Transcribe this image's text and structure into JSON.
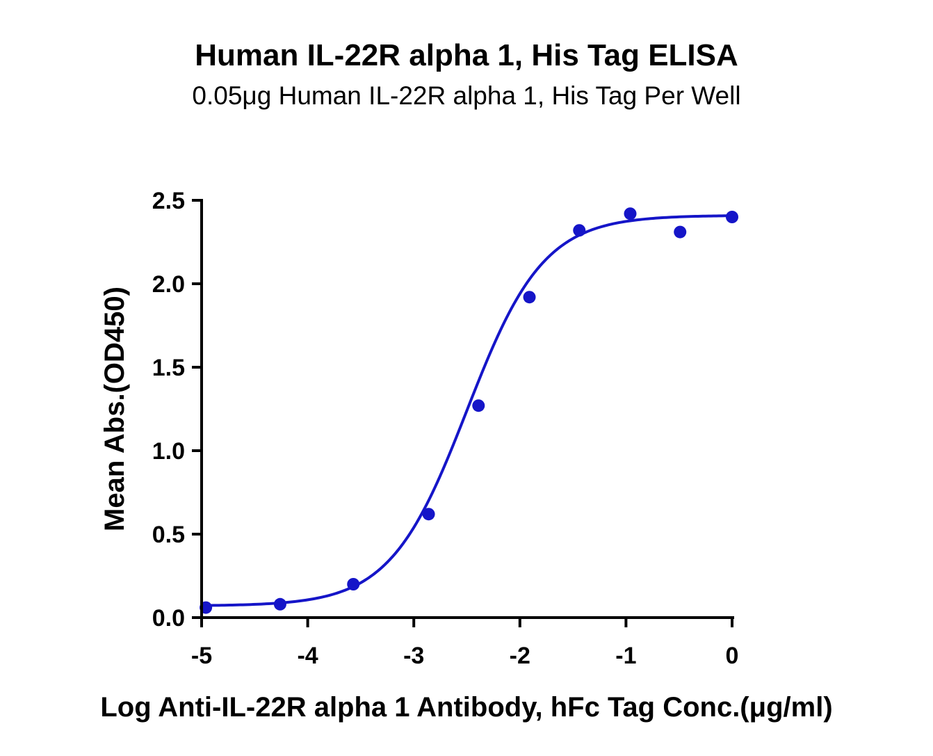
{
  "chart_data": {
    "type": "scatter",
    "title": "Human IL-22R alpha 1, His Tag ELISA",
    "subtitle": "0.05μg Human IL-22R alpha 1, His Tag Per Well",
    "xlabel": "Log Anti-IL-22R alpha 1 Antibody, hFc Tag Conc.(μg/ml)",
    "ylabel": "Mean Abs.(OD450)",
    "xlim": [
      -5,
      0
    ],
    "ylim": [
      0,
      2.5
    ],
    "x_ticks": [
      "-5",
      "-4",
      "-3",
      "-2",
      "-1",
      "0"
    ],
    "y_ticks": [
      "0.0",
      "0.5",
      "1.0",
      "1.5",
      "2.0",
      "2.5"
    ],
    "grid": false,
    "legend": "none",
    "color": "#1515c8",
    "series": [
      {
        "x": [
          -4.96,
          -4.26,
          -3.57,
          -2.86,
          -2.39,
          -1.91,
          -1.44,
          -0.96,
          -0.49,
          0.0
        ],
        "y": [
          0.06,
          0.08,
          0.2,
          0.62,
          1.27,
          1.92,
          2.32,
          2.42,
          2.31,
          2.4
        ]
      }
    ],
    "fit": {
      "model": "4PL",
      "bottom": 0.07,
      "top": 2.41,
      "log_ec50": -2.5,
      "hill_slope": 1.2
    }
  }
}
